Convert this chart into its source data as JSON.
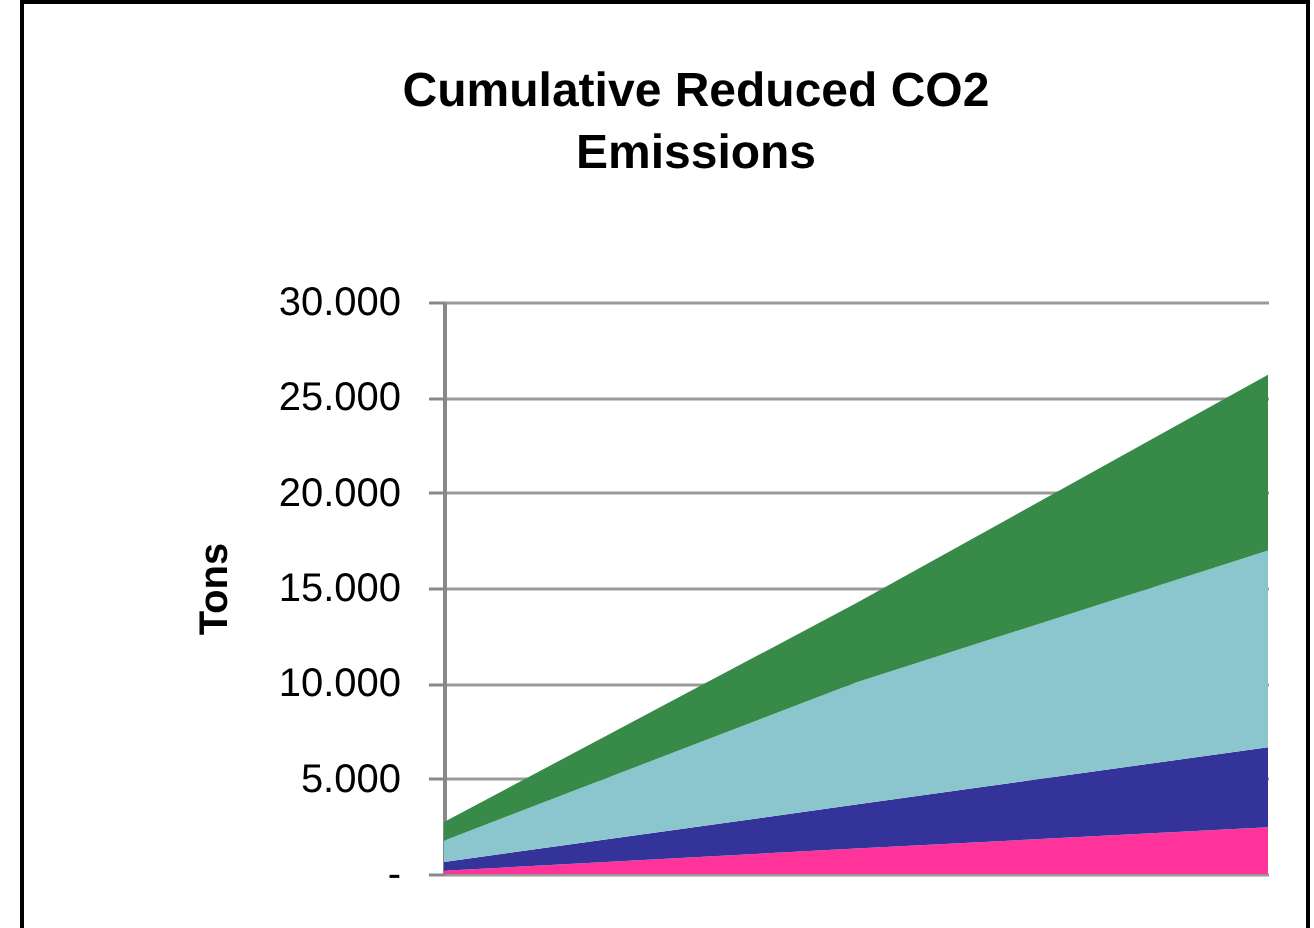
{
  "chart_data": {
    "type": "area",
    "title": "Cumulative Reduced CO2 Emissions",
    "ylabel": "Tons",
    "stacked": true,
    "categories": [
      null,
      null,
      null
    ],
    "series": [
      {
        "color": "#ff3399",
        "values": [
          170,
          1340,
          2450
        ]
      },
      {
        "color": "#333399",
        "values": [
          460,
          2300,
          4200
        ]
      },
      {
        "color": "#8bc5cd",
        "values": [
          1120,
          6410,
          10320
        ]
      },
      {
        "color": "#378a48",
        "values": [
          980,
          4150,
          9210
        ]
      }
    ],
    "ylim": [
      0,
      30000
    ],
    "yticks": [
      {
        "value": 0,
        "label": "-"
      },
      {
        "value": 5000,
        "label": "5.000"
      },
      {
        "value": 10000,
        "label": "10.000"
      },
      {
        "value": 15000,
        "label": "15.000"
      },
      {
        "value": 20000,
        "label": "20.000"
      },
      {
        "value": 25000,
        "label": "25.000"
      },
      {
        "value": 30000,
        "label": "30.000"
      }
    ],
    "grid": "y",
    "tick_labels": "y"
  }
}
